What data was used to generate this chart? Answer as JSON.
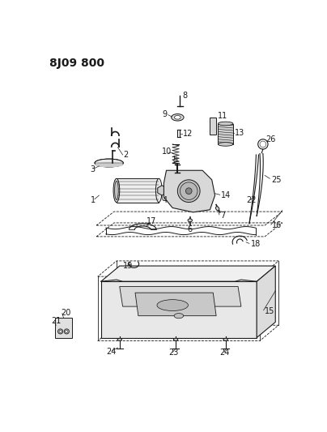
{
  "title": "8J09 800",
  "bg_color": "#ffffff",
  "line_color": "#1a1a1a",
  "title_fontsize": 10,
  "label_fontsize": 7,
  "fig_width": 4.04,
  "fig_height": 5.33,
  "dpi": 100
}
